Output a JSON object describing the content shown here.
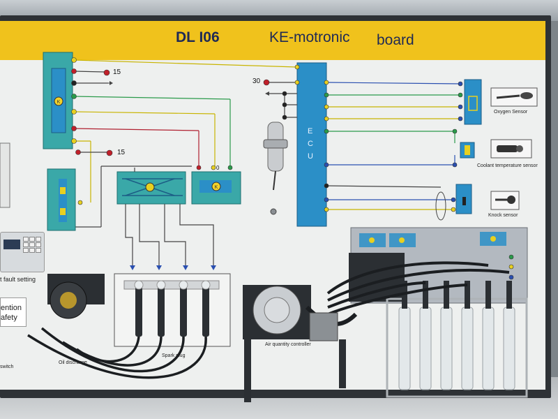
{
  "header": {
    "model": "DL  I06",
    "title": "KE-motronic",
    "subtitle": "board"
  },
  "pins": {
    "p15_top": "15",
    "p15_mid": "15",
    "p30": "30",
    "p0": "0"
  },
  "ecu": {
    "letters": [
      "E",
      "C",
      "U"
    ]
  },
  "labels": {
    "oxygen_sensor": "Oxygen  Sensor",
    "coolant_sensor": "Coolant temperature sensor",
    "knock_sensor": "Knock sensor",
    "fault_setting": "t fault setting",
    "oil_discharge": "Oil discharge",
    "spark_plug": "Spark plug",
    "air_quantity": "Air quantity controller",
    "switch": "switch",
    "warning_line1": "ention",
    "warning_line2": "afety"
  },
  "colors": {
    "header_yellow": "#f0c21c",
    "panel_blue": "#2b8fc7",
    "panel_teal": "#3aa8a8",
    "wire_red": "#c0202a",
    "wire_yellow": "#e8d020",
    "wire_green": "#2a9a4a",
    "wire_blue": "#2a4fb0"
  }
}
